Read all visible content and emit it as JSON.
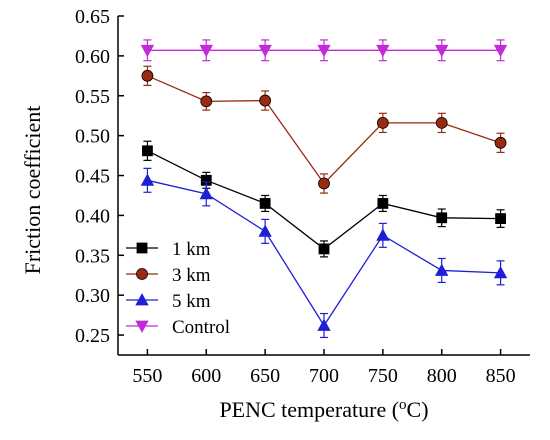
{
  "chart_data": {
    "type": "line",
    "title": "",
    "xlabel_main": "PENC temperature (",
    "xlabel_sup": "o",
    "xlabel_end": "C)",
    "ylabel": "Friction coefficient",
    "x": [
      550,
      600,
      650,
      700,
      750,
      800,
      850
    ],
    "x_tick_labels": [
      "550",
      "600",
      "650",
      "700",
      "750",
      "800",
      "850"
    ],
    "xlim": [
      525,
      875
    ],
    "ylim": [
      0.225,
      0.65
    ],
    "y_ticks": [
      0.25,
      0.3,
      0.35,
      0.4,
      0.45,
      0.5,
      0.55,
      0.6,
      0.65
    ],
    "y_tick_labels": [
      "0.25",
      "0.30",
      "0.35",
      "0.40",
      "0.45",
      "0.50",
      "0.55",
      "0.60",
      "0.65"
    ],
    "grid": false,
    "legend_position": "bottom-left",
    "series": [
      {
        "name": "1 km",
        "color": "#000000",
        "marker": "square",
        "values": [
          0.481,
          0.444,
          0.415,
          0.358,
          0.415,
          0.397,
          0.396
        ],
        "errors": [
          0.012,
          0.01,
          0.01,
          0.01,
          0.01,
          0.011,
          0.011
        ]
      },
      {
        "name": "3 km",
        "color": "#9a2a12",
        "marker": "circle",
        "values": [
          0.575,
          0.543,
          0.544,
          0.44,
          0.516,
          0.516,
          0.491
        ],
        "errors": [
          0.012,
          0.011,
          0.012,
          0.012,
          0.012,
          0.012,
          0.012
        ]
      },
      {
        "name": "5 km",
        "color": "#1f1fd6",
        "marker": "triangle-up",
        "values": [
          0.444,
          0.427,
          0.38,
          0.262,
          0.375,
          0.331,
          0.328
        ],
        "errors": [
          0.015,
          0.015,
          0.015,
          0.015,
          0.015,
          0.015,
          0.015
        ]
      },
      {
        "name": "Control",
        "color": "#c22bd6",
        "marker": "triangle-down",
        "values": [
          0.607,
          0.607,
          0.607,
          0.607,
          0.607,
          0.607,
          0.607
        ],
        "errors": [
          0.013,
          0.013,
          0.013,
          0.013,
          0.013,
          0.013,
          0.013
        ]
      }
    ]
  }
}
